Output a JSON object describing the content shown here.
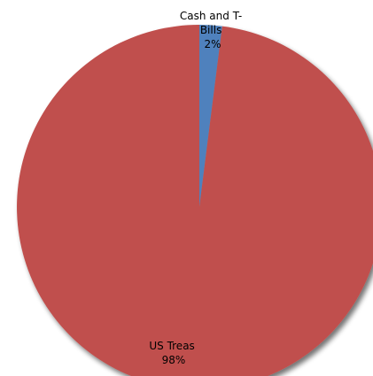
{
  "chart_data": {
    "type": "pie",
    "title": "",
    "slices": [
      {
        "label": "US Treas",
        "value": 98,
        "percent_label": "98%",
        "color": "#c0504d"
      },
      {
        "label_lines": [
          "Cash and T-",
          "Bills"
        ],
        "value": 2,
        "percent_label": "2%",
        "color": "#4f81bd"
      }
    ],
    "legend": "none",
    "shadow": true
  }
}
